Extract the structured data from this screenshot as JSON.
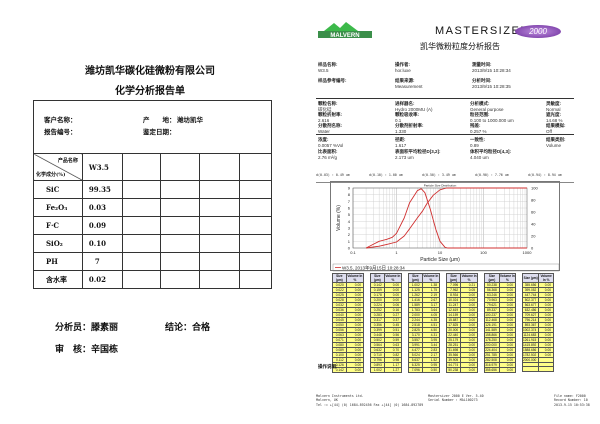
{
  "left": {
    "company": "潍坊凯华碳化硅微粉有限公司",
    "title": "化学分析报告单",
    "customer_label": "客户名称：",
    "origin_label": "产　　地：",
    "origin_value": "潍坊凯华",
    "report_no_label": "报告编号：",
    "date_label": "鉴定日期：",
    "product_name_header": "产品名称",
    "composition_header": "化学成分(%)",
    "product": "W3.5",
    "rows": [
      {
        "name": "SiC",
        "value": "99.35"
      },
      {
        "name": "Fe₂O₃",
        "value": "0.03"
      },
      {
        "name": "F·C",
        "value": "0.09"
      },
      {
        "name": "SiO₂",
        "value": "0.10"
      },
      {
        "name": "PH",
        "value": "7"
      },
      {
        "name": "含水率",
        "value": "0.02"
      }
    ],
    "analyst": "分析员：滕素丽",
    "conclusion": "结论：合格",
    "reviewer": "审　核：辛国栋"
  },
  "right": {
    "logo": "MALVERN",
    "brand": "MASTERSIZER",
    "model": "2000",
    "title": "凯华微粉粒度分析报告",
    "info": [
      [
        {
          "l": "样品名称:",
          "v": "W3.5"
        },
        {
          "l": "操作者:",
          "v": "hor.luxe"
        },
        {
          "l": "测量时间:",
          "v": "2013/9/15 10:28:34"
        }
      ],
      [
        {
          "l": "样品参考编号:",
          "v": ""
        },
        {
          "l": "结果来源:",
          "v": "Measurement"
        },
        {
          "l": "分析时间:",
          "v": "2013/9/15 10:28:35"
        }
      ]
    ],
    "params": [
      [
        {
          "l": "颗粒名称:",
          "v": "碳化硅"
        },
        {
          "l": "进样器名:",
          "v": "Hydro 2000MU (A)"
        },
        {
          "l": "分析模式:",
          "v": "General purpose"
        },
        {
          "l": "灵敏度:",
          "v": "Normal"
        }
      ],
      [
        {
          "l": "颗粒折射率:",
          "v": "2.616"
        },
        {
          "l": "颗粒吸收率:",
          "v": "0.1"
        },
        {
          "l": "粒径范围:",
          "v": "0.100   to   1000.000   um"
        },
        {
          "l": "遮光度:",
          "v": "14.68   %"
        }
      ],
      [
        {
          "l": "分散剂名称:",
          "v": "Water"
        },
        {
          "l": "分散剂折射率:",
          "v": "1.330"
        },
        {
          "l": "残差:",
          "v": "0.257   %"
        },
        {
          "l": "结果模拟:",
          "v": "Off"
        }
      ]
    ],
    "results": [
      [
        {
          "l": "浓度:",
          "v": "0.0057   %Vol"
        },
        {
          "l": "径距:",
          "v": "1.617"
        },
        {
          "l": "一致性:",
          "v": "0.89"
        },
        {
          "l": "结果类别:",
          "v": "Volume"
        }
      ],
      [
        {
          "l": "比表面积:",
          "v": "2.76   m²/g"
        },
        {
          "l": "表面积平均粒径D[3,2]:",
          "v": "2.173   um"
        },
        {
          "l": "体积平均粒径D[4,3]:",
          "v": "4.040   um"
        },
        {
          "l": "",
          "v": ""
        }
      ]
    ],
    "percentiles": [
      "d(0.03) : 0.49 um",
      "d(0.10) : 1.00 um",
      "d(0.50) : 3.49 um",
      "d(0.90) : 7.76 um",
      "d(0.94) : 8.94 um"
    ],
    "table_headers": [
      "Size (µm)",
      "Volume In %"
    ],
    "tables": [
      [
        [
          "0.020",
          "0.00"
        ],
        [
          "0.022",
          "0.00"
        ],
        [
          "0.025",
          "0.00"
        ],
        [
          "0.028",
          "0.00"
        ],
        [
          "0.032",
          "0.00"
        ],
        [
          "0.036",
          "0.00"
        ],
        [
          "0.040",
          "0.00"
        ],
        [
          "0.045",
          "0.00"
        ],
        [
          "0.050",
          "0.00"
        ],
        [
          "0.056",
          "0.00"
        ],
        [
          "0.063",
          "0.00"
        ],
        [
          "0.071",
          "0.00"
        ],
        [
          "0.080",
          "0.00"
        ],
        [
          "0.089",
          "0.00"
        ],
        [
          "0.100",
          "0.00"
        ],
        [
          "0.112",
          "0.00"
        ],
        [
          "0.126",
          "0.00"
        ],
        [
          "0.142",
          "0.00"
        ]
      ],
      [
        [
          "0.142",
          "0.00"
        ],
        [
          "0.159",
          "0.00"
        ],
        [
          "0.178",
          "0.00"
        ],
        [
          "0.200",
          "0.00"
        ],
        [
          "0.224",
          "0.06"
        ],
        [
          "0.252",
          "0.16"
        ],
        [
          "0.283",
          "0.27"
        ],
        [
          "0.317",
          "0.37"
        ],
        [
          "0.356",
          "0.45"
        ],
        [
          "0.399",
          "0.51"
        ],
        [
          "0.448",
          "0.56"
        ],
        [
          "0.502",
          "0.59"
        ],
        [
          "0.564",
          "0.63"
        ],
        [
          "0.632",
          "0.70"
        ],
        [
          "0.710",
          "0.82"
        ],
        [
          "0.796",
          "0.98"
        ],
        [
          "0.893",
          "1.17"
        ],
        [
          "1.002",
          "1.27"
        ]
      ],
      [
        [
          "1.002",
          "1.38"
        ],
        [
          "1.125",
          "1.75"
        ],
        [
          "1.262",
          "2.19"
        ],
        [
          "1.416",
          "2.67"
        ],
        [
          "1.589",
          "3.17"
        ],
        [
          "1.783",
          "3.64"
        ],
        [
          "2.000",
          "4.05"
        ],
        [
          "2.244",
          "4.35"
        ],
        [
          "2.518",
          "4.51"
        ],
        [
          "2.825",
          "4.50"
        ],
        [
          "3.170",
          "4.31"
        ],
        [
          "3.557",
          "3.95"
        ],
        [
          "3.991",
          "3.44"
        ],
        [
          "4.477",
          "2.83"
        ],
        [
          "5.024",
          "2.17"
        ],
        [
          "5.637",
          "1.52"
        ],
        [
          "6.325",
          "0.95"
        ],
        [
          "7.096",
          "0.50"
        ]
      ],
      [
        [
          "7.096",
          "0.21"
        ],
        [
          "7.962",
          "0.05"
        ],
        [
          "8.934",
          "0.00"
        ],
        [
          "10.024",
          "0.00"
        ],
        [
          "11.247",
          "0.00"
        ],
        [
          "12.619",
          "0.00"
        ],
        [
          "14.159",
          "0.00"
        ],
        [
          "15.887",
          "0.00"
        ],
        [
          "17.825",
          "0.00"
        ],
        [
          "20.000",
          "0.00"
        ],
        [
          "22.440",
          "0.00"
        ],
        [
          "25.179",
          "0.00"
        ],
        [
          "28.251",
          "0.00"
        ],
        [
          "31.698",
          "0.00"
        ],
        [
          "35.566",
          "0.00"
        ],
        [
          "39.905",
          "0.00"
        ],
        [
          "44.774",
          "0.00"
        ],
        [
          "50.238",
          "0.00"
        ]
      ],
      [
        [
          "50.238",
          "0.00"
        ],
        [
          "56.368",
          "0.00"
        ],
        [
          "63.246",
          "0.00"
        ],
        [
          "70.963",
          "0.00"
        ],
        [
          "79.621",
          "0.00"
        ],
        [
          "89.337",
          "0.00"
        ],
        [
          "100.237",
          "0.00"
        ],
        [
          "112.468",
          "0.00"
        ],
        [
          "126.191",
          "0.00"
        ],
        [
          "141.589",
          "0.00"
        ],
        [
          "158.866",
          "0.00"
        ],
        [
          "178.250",
          "0.00"
        ],
        [
          "200.000",
          "0.00"
        ],
        [
          "224.404",
          "0.00"
        ],
        [
          "251.785",
          "0.00"
        ],
        [
          "282.508",
          "0.00"
        ],
        [
          "316.979",
          "0.00"
        ],
        [
          "355.656",
          "0.00"
        ]
      ],
      [
        [
          "355.656",
          "0.00"
        ],
        [
          "399.052",
          "0.00"
        ],
        [
          "447.744",
          "0.00"
        ],
        [
          "502.377",
          "0.00"
        ],
        [
          "563.677",
          "0.00"
        ],
        [
          "632.456",
          "0.00"
        ],
        [
          "709.627",
          "0.00"
        ],
        [
          "796.214",
          "0.00"
        ],
        [
          "893.367",
          "0.00"
        ],
        [
          "1002.374",
          "0.00"
        ],
        [
          "1124.683",
          "0.00"
        ],
        [
          "1261.915",
          "0.00"
        ],
        [
          "1415.892",
          "0.00"
        ],
        [
          "1588.656",
          "0.00"
        ],
        [
          "1782.502",
          "0.00"
        ],
        [
          "2000.000",
          ""
        ]
      ]
    ],
    "notes_label": "操作说明:",
    "footer_left": [
      "Malvern Instruments Ltd.",
      "Malvern, UK",
      "Tel := +[44] (0) 1684-892456 Fax +[44] (0) 1684-892789"
    ],
    "footer_mid": [
      "Mastersizer 2000 E Ver. 5.40",
      "Serial Number : MAL100273"
    ],
    "footer_right": [
      "File name: F2000",
      "Record Number: 10",
      "2013-9-15 10:53:38"
    ]
  },
  "chart_data": {
    "type": "line",
    "title": "Particle Size Distribution",
    "xlabel": "Particle Size (µm)",
    "ylabel": "Volume (%)",
    "xscale": "log",
    "xlim": [
      0.1,
      1000
    ],
    "ylim": [
      0,
      9
    ],
    "y2lim": [
      0,
      100
    ],
    "xticks": [
      "0.1",
      "1",
      "10",
      "100",
      "1000"
    ],
    "yticks": [
      "0",
      "1",
      "2",
      "3",
      "4",
      "5",
      "6",
      "7",
      "8",
      "9"
    ],
    "y2ticks": [
      "0",
      "20",
      "40",
      "60",
      "80",
      "100"
    ],
    "grid": true,
    "color": "#d03030",
    "legend": "W3.5, 2013年9月15日 10:28:34",
    "legend_position": "bottom",
    "series": [
      {
        "axis": "left",
        "x": [
          0.2,
          0.3,
          0.4,
          0.6,
          0.8,
          1,
          1.5,
          2,
          3,
          3.7,
          4.5,
          6,
          8,
          10,
          13,
          15,
          1000
        ],
        "y": [
          0,
          0.6,
          1.0,
          1.3,
          1.6,
          2.2,
          4.5,
          6.8,
          8.6,
          8.9,
          8.3,
          5.8,
          2.8,
          1.0,
          0.1,
          0,
          0
        ]
      },
      {
        "axis": "right",
        "x": [
          0.2,
          0.4,
          0.6,
          1,
          1.5,
          2,
          3,
          4,
          5,
          7,
          10,
          14,
          1000
        ],
        "y": [
          0,
          3,
          6,
          10,
          20,
          32,
          50,
          62,
          74,
          88,
          97,
          100,
          100
        ]
      }
    ]
  }
}
